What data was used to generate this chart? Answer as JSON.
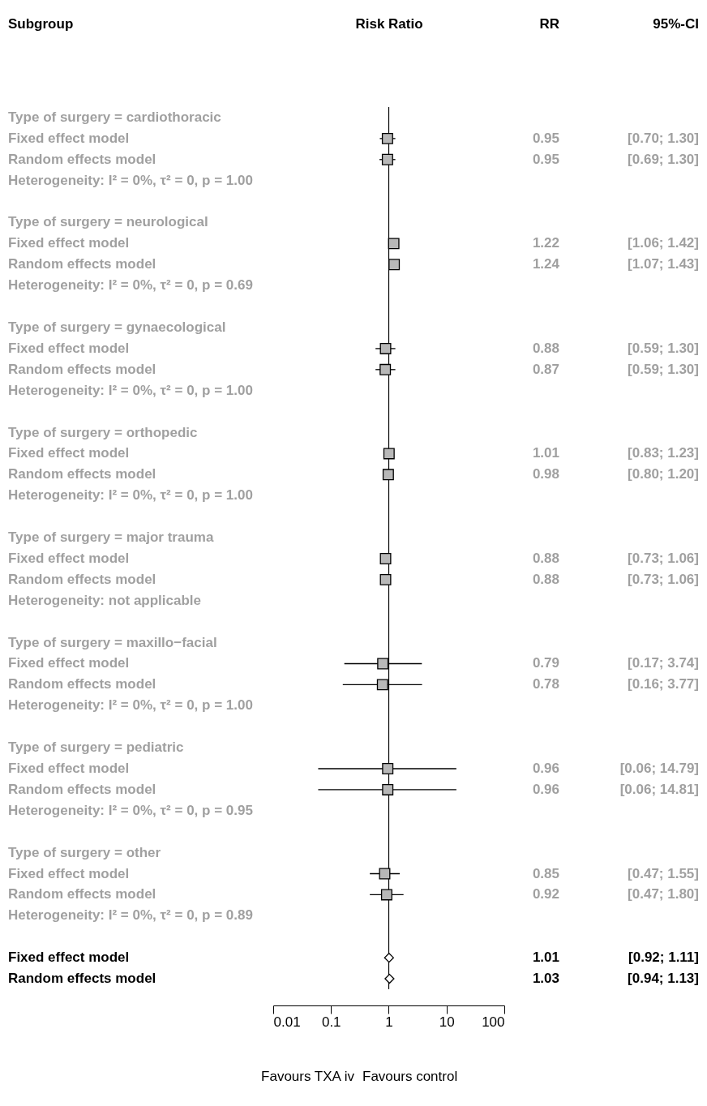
{
  "chart_data": {
    "type": "scatter",
    "orientation": "horizontal",
    "annotations": [
      "Subgroup",
      "Risk Ratio",
      "RR",
      "95%-CI",
      "Favours TXA iv",
      "Favours control"
    ],
    "categories": [
      "Type of surgery = cardiothoracic",
      "Fixed effect model",
      "Random effects model",
      "Heterogeneity: I² = 0%, τ² = 0, p = 1.00",
      null,
      "Type of surgery = neurological",
      "Fixed effect model",
      "Random effects model",
      "Heterogeneity: I² = 0%, τ² = 0, p = 0.69",
      null,
      "Type of surgery = gynaecological",
      "Fixed effect model",
      "Random effects model",
      "Heterogeneity: I² = 0%, τ² = 0, p = 1.00",
      null,
      "Type of surgery = orthopedic",
      "Fixed effect model",
      "Random effects model",
      "Heterogeneity: I² = 0%, τ² = 0, p = 1.00",
      null,
      "Type of surgery = major trauma",
      "Fixed effect model",
      "Random effects model",
      "Heterogeneity: not applicable",
      null,
      "Type of surgery = maxillo−facial",
      "Fixed effect model",
      "Random effects model",
      "Heterogeneity: I² = 0%, τ² = 0, p = 1.00",
      null,
      "Type of surgery = pediatric",
      "Fixed effect model",
      "Random effects model",
      "Heterogeneity: I² = 0%, τ² = 0, p = 0.95",
      null,
      "Type of surgery = other",
      "Fixed effect model",
      "Random effects model",
      "Heterogeneity: I² = 0%, τ² = 0, p = 0.89",
      null,
      "Fixed effect model",
      "Random effects model"
    ],
    "series": [
      {
        "color": "#000000",
        "marker": "square",
        "values": [
          null,
          0.95,
          0.95,
          null,
          null,
          null,
          1.22,
          1.24,
          null,
          null,
          null,
          0.88,
          0.87,
          null,
          null,
          null,
          1.01,
          0.98,
          null,
          null,
          null,
          0.88,
          0.88,
          null,
          null,
          null,
          0.79,
          0.78,
          null,
          null,
          null,
          0.96,
          0.96,
          null,
          null,
          null,
          0.85,
          0.92,
          null,
          null,
          null,
          null
        ],
        "errors": [
          null,
          [
            0.7,
            1.3
          ],
          [
            0.69,
            1.3
          ],
          null,
          null,
          null,
          [
            1.06,
            1.42
          ],
          [
            1.07,
            1.43
          ],
          null,
          null,
          null,
          [
            0.59,
            1.3
          ],
          [
            0.59,
            1.3
          ],
          null,
          null,
          null,
          [
            0.83,
            1.23
          ],
          [
            0.8,
            1.2
          ],
          null,
          null,
          null,
          [
            0.73,
            1.06
          ],
          [
            0.73,
            1.06
          ],
          null,
          null,
          null,
          [
            0.17,
            3.74
          ],
          [
            0.16,
            3.77
          ],
          null,
          null,
          null,
          [
            0.06,
            14.79
          ],
          [
            0.06,
            14.81
          ],
          null,
          null,
          null,
          [
            0.47,
            1.55
          ],
          [
            0.47,
            1.8
          ],
          null,
          null,
          null,
          null
        ],
        "value_labels": [
          null,
          "0.95 [0.70; 1.30]",
          "0.95 [0.69; 1.30]",
          null,
          null,
          null,
          "1.22 [1.06; 1.42]",
          "1.24 [1.07; 1.43]",
          null,
          null,
          null,
          "0.88 [0.59; 1.30]",
          "0.87 [0.59; 1.30]",
          null,
          null,
          null,
          "1.01 [0.83; 1.23]",
          "0.98 [0.80; 1.20]",
          null,
          null,
          null,
          "0.88 [0.73; 1.06]",
          "0.88 [0.73; 1.06]",
          null,
          null,
          null,
          "0.79 [0.17; 3.74]",
          "0.78 [0.16; 3.77]",
          null,
          null,
          null,
          "0.96 [0.06; 14.79]",
          "0.96 [0.06; 14.81]",
          null,
          null,
          null,
          "0.85 [0.47; 1.55]",
          "0.92 [0.47; 1.80]",
          null,
          null,
          null,
          null
        ]
      },
      {
        "color": "#000000",
        "marker": "diamond",
        "values": [
          null,
          null,
          null,
          null,
          null,
          null,
          null,
          null,
          null,
          null,
          null,
          null,
          null,
          null,
          null,
          null,
          null,
          null,
          null,
          null,
          null,
          null,
          null,
          null,
          null,
          null,
          null,
          null,
          null,
          null,
          null,
          null,
          null,
          null,
          null,
          null,
          null,
          null,
          null,
          null,
          1.01,
          1.03
        ],
        "errors": [
          null,
          null,
          null,
          null,
          null,
          null,
          null,
          null,
          null,
          null,
          null,
          null,
          null,
          null,
          null,
          null,
          null,
          null,
          null,
          null,
          null,
          null,
          null,
          null,
          null,
          null,
          null,
          null,
          null,
          null,
          null,
          null,
          null,
          null,
          null,
          null,
          null,
          null,
          null,
          null,
          [
            0.92,
            1.11
          ],
          [
            0.94,
            1.13
          ]
        ],
        "value_labels": [
          null,
          null,
          null,
          null,
          null,
          null,
          null,
          null,
          null,
          null,
          null,
          null,
          null,
          null,
          null,
          null,
          null,
          null,
          null,
          null,
          null,
          null,
          null,
          null,
          null,
          null,
          null,
          null,
          null,
          null,
          null,
          null,
          null,
          null,
          null,
          null,
          null,
          null,
          null,
          null,
          "1.01 [0.92; 1.11]",
          "1.03 [0.94; 1.13]"
        ]
      }
    ],
    "log": "x",
    "xlim": [
      0.01,
      100
    ],
    "xticks": [
      0.01,
      0.1,
      1,
      10,
      100
    ],
    "grid": false,
    "ref_lines": [
      {
        "axis": "x",
        "value": 1,
        "line_style": "solid",
        "color": "#000000"
      }
    ]
  }
}
